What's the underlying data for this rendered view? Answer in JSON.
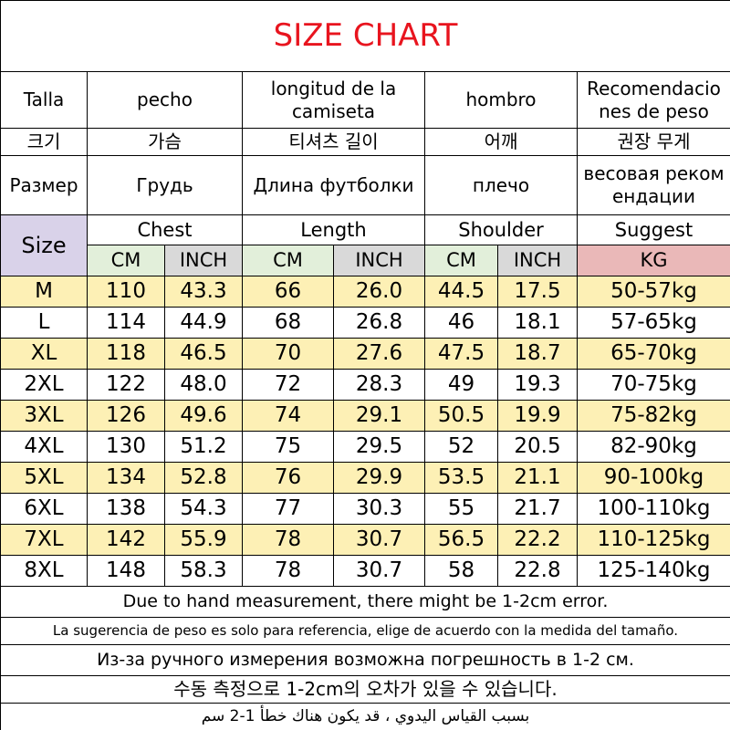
{
  "title": "SIZE CHART",
  "header_rows": [
    [
      [
        "Talla"
      ],
      [
        "pecho"
      ],
      [
        "longitud de la",
        "camiseta"
      ],
      [
        "hombro"
      ],
      [
        "Recomendacio",
        "nes de peso"
      ]
    ],
    [
      [
        "크기"
      ],
      [
        "가슴"
      ],
      [
        "티셔츠 길이"
      ],
      [
        "어깨"
      ],
      [
        "권장 무게"
      ]
    ],
    [
      [
        "Размер"
      ],
      [
        "Грудь"
      ],
      [
        "Длина футболки"
      ],
      [
        "плечо"
      ],
      [
        "весовая реком",
        "ендации"
      ]
    ]
  ],
  "table": {
    "size_label": "Size",
    "groups": [
      "Chest",
      "Length",
      "Shoulder",
      "Suggest"
    ],
    "units": [
      "CM",
      "INCH",
      "CM",
      "INCH",
      "CM",
      "INCH",
      "KG"
    ],
    "rows": [
      [
        "M",
        "110",
        "43.3",
        "66",
        "26.0",
        "44.5",
        "17.5",
        "50-57kg"
      ],
      [
        "L",
        "114",
        "44.9",
        "68",
        "26.8",
        "46",
        "18.1",
        "57-65kg"
      ],
      [
        "XL",
        "118",
        "46.5",
        "70",
        "27.6",
        "47.5",
        "18.7",
        "65-70kg"
      ],
      [
        "2XL",
        "122",
        "48.0",
        "72",
        "28.3",
        "49",
        "19.3",
        "70-75kg"
      ],
      [
        "3XL",
        "126",
        "49.6",
        "74",
        "29.1",
        "50.5",
        "19.9",
        "75-82kg"
      ],
      [
        "4XL",
        "130",
        "51.2",
        "75",
        "29.5",
        "52",
        "20.5",
        "82-90kg"
      ],
      [
        "5XL",
        "134",
        "52.8",
        "76",
        "29.9",
        "53.5",
        "21.1",
        "90-100kg"
      ],
      [
        "6XL",
        "138",
        "54.3",
        "77",
        "30.3",
        "55",
        "21.7",
        "100-110kg"
      ],
      [
        "7XL",
        "142",
        "55.9",
        "78",
        "30.7",
        "56.5",
        "22.2",
        "110-125kg"
      ],
      [
        "8XL",
        "148",
        "58.3",
        "78",
        "30.7",
        "58",
        "22.8",
        "125-140kg"
      ]
    ]
  },
  "notes": [
    "Due to hand measurement, there might be 1-2cm error.",
    "La sugerencia de peso es solo para referencia, elige de acuerdo con la medida del tamaño.",
    "Из-за ручного измерения возможна погрешность в 1-2 см.",
    "수동 측정으로 1-2cm의 오차가 있을 수 있습니다.",
    "بسبب القياس اليدوي ، قد يكون هناك خطأ 1-2 سم"
  ]
}
